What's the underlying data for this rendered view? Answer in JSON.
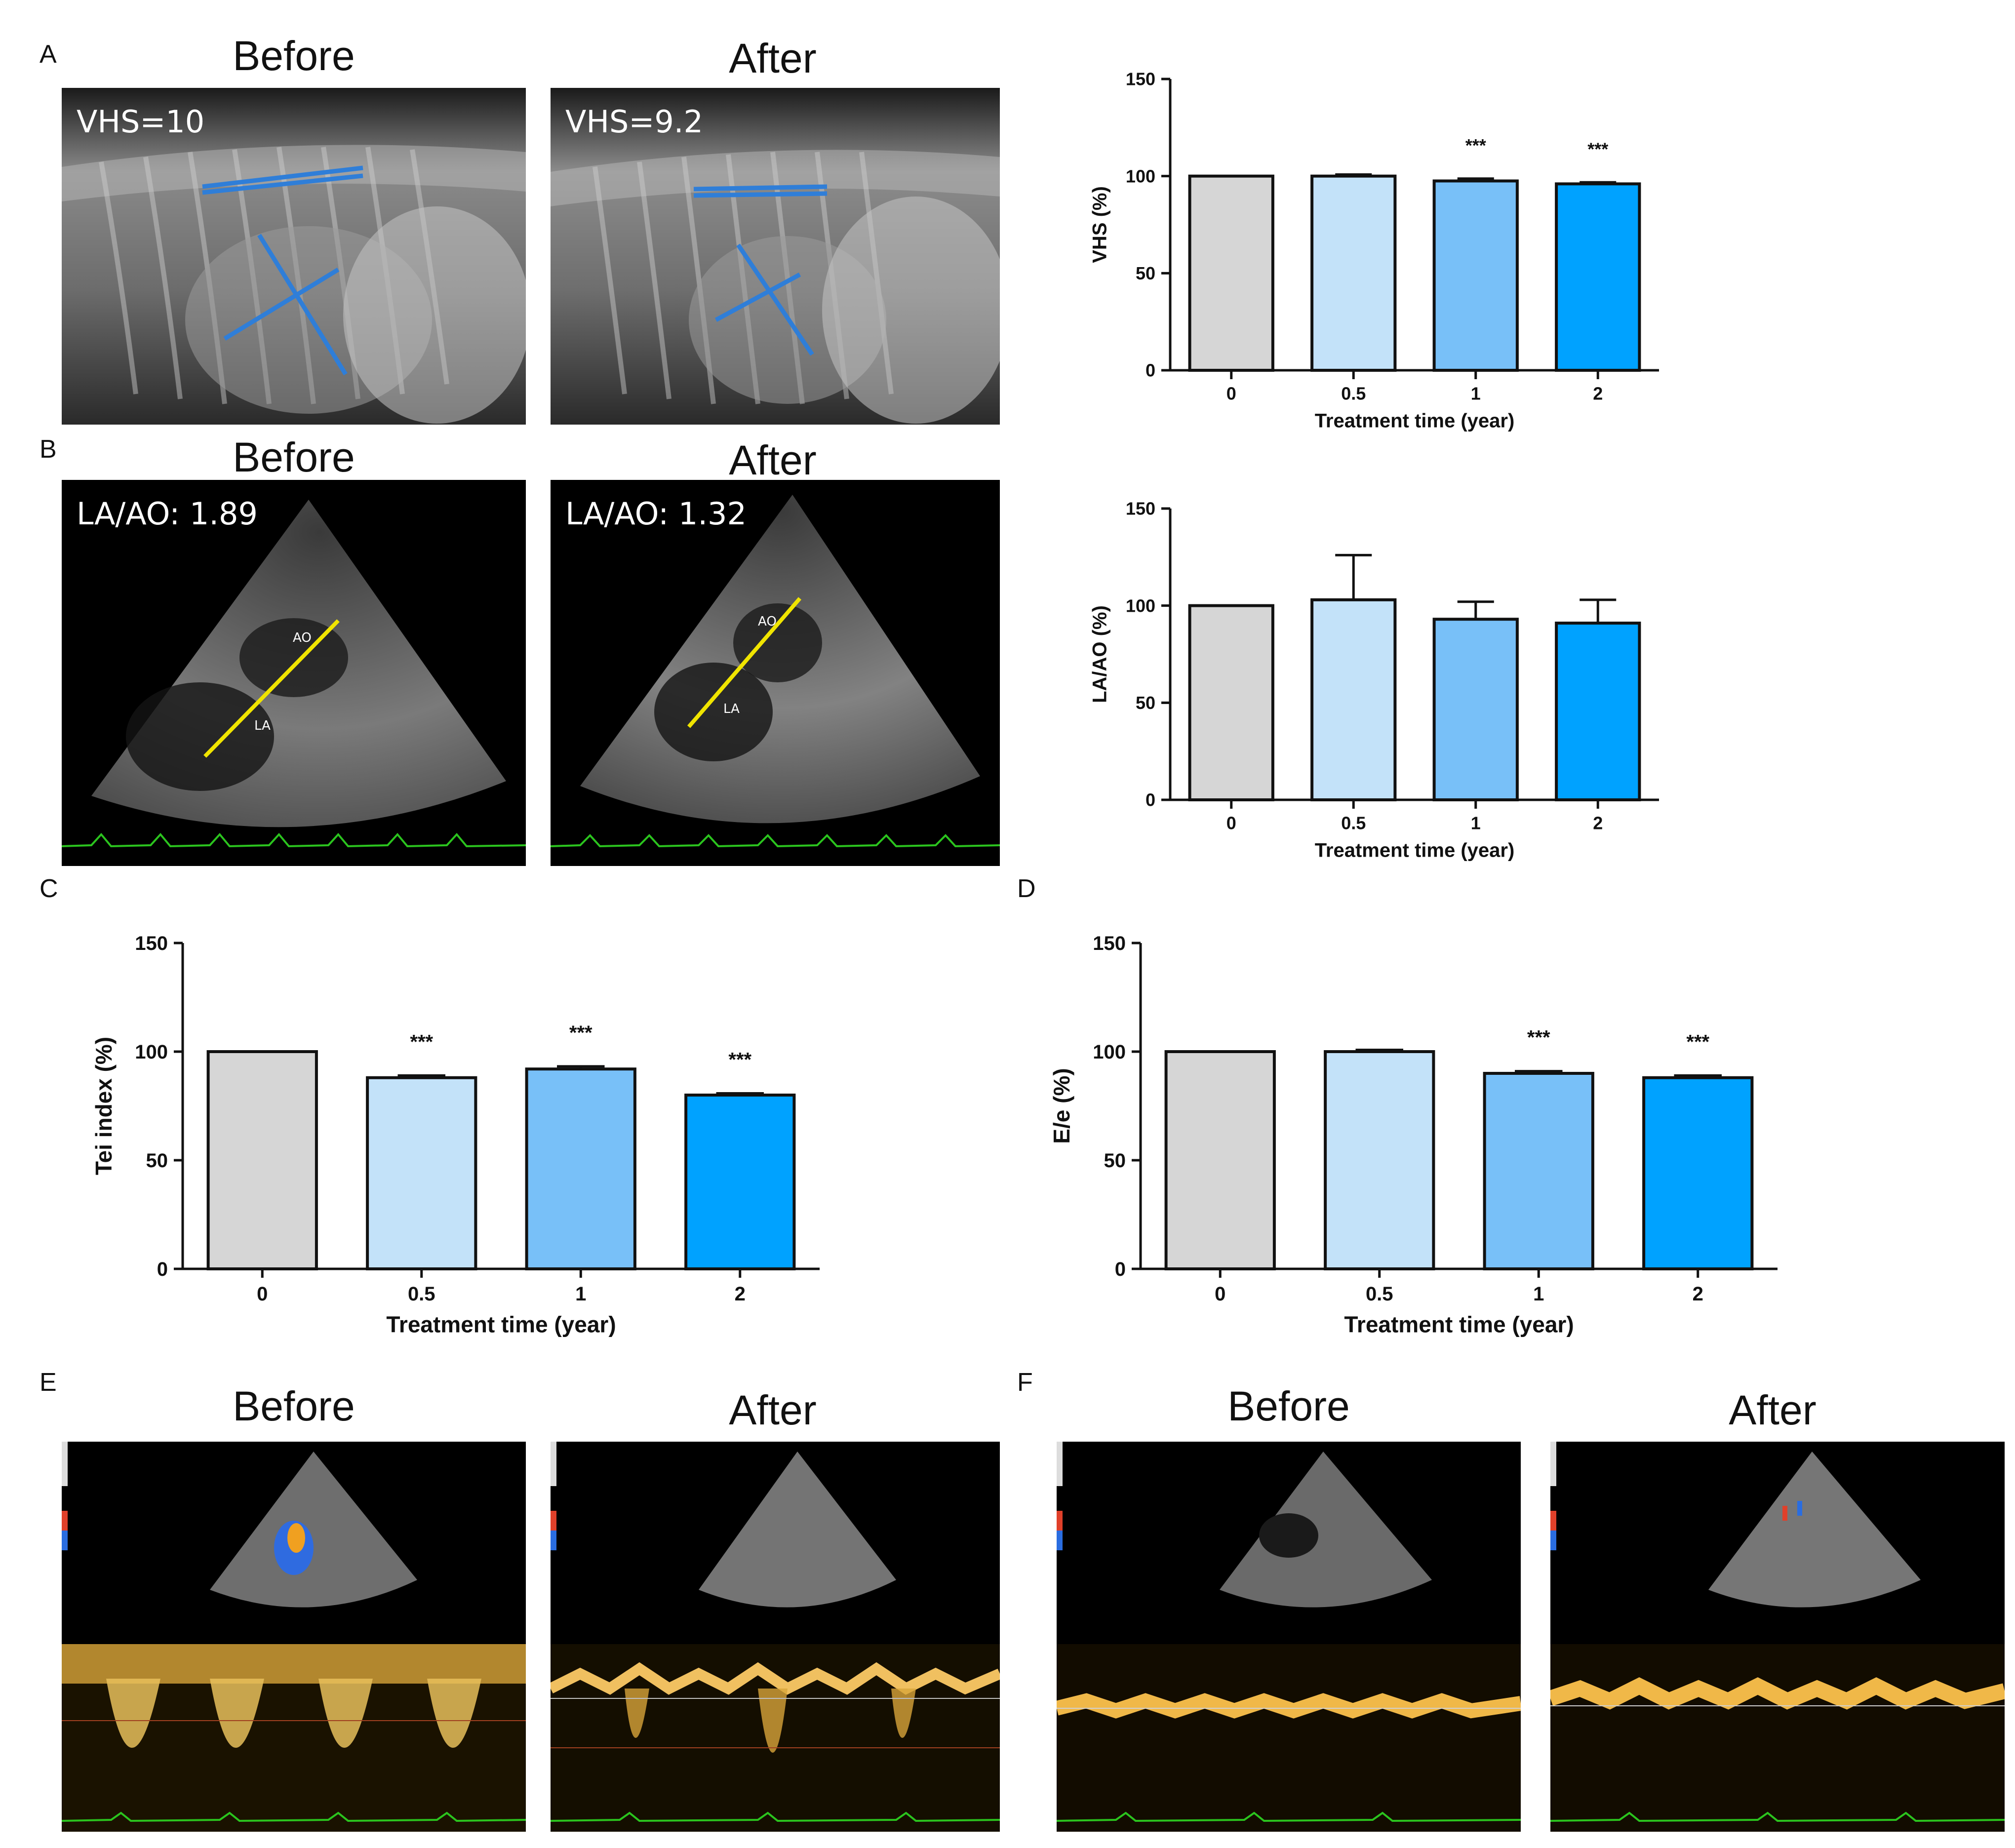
{
  "panel_letters": {
    "a": "A",
    "b": "B",
    "c": "C",
    "d": "D",
    "e": "E",
    "f": "F"
  },
  "images": {
    "xray_before": {
      "title": "Before",
      "label": "VHS=10"
    },
    "xray_after": {
      "title": "After",
      "label": "VHS=9.2"
    },
    "echo_before": {
      "title": "Before",
      "label": "LA/AO: 1.89",
      "marker_ao": "AO",
      "marker_la": "LA"
    },
    "echo_after": {
      "title": "After",
      "label": "LA/AO: 1.32",
      "marker_ao": "AO",
      "marker_la": "LA"
    },
    "doppler_e_before": {
      "title": "Before"
    },
    "doppler_e_after": {
      "title": "After"
    },
    "doppler_f_before": {
      "title": "Before"
    },
    "doppler_f_after": {
      "title": "After"
    }
  },
  "colors": {
    "c0": "#d6d6d6",
    "c05": "#c3e2f9",
    "c1": "#78c0f8",
    "c2": "#00a2ff"
  },
  "chart_data": [
    {
      "id": "vhs",
      "type": "bar",
      "categories": [
        "0",
        "0.5",
        "1",
        "2"
      ],
      "values": [
        100,
        100,
        97.5,
        96
      ],
      "errors": [
        0,
        0.8,
        1.2,
        0.8
      ],
      "significance": [
        "",
        "",
        "***",
        "***"
      ],
      "ylabel": "VHS (%)",
      "xlabel": "Treatment time (year)",
      "ylim": [
        0,
        150
      ],
      "yticks": [
        0,
        50,
        100,
        150
      ]
    },
    {
      "id": "laao",
      "type": "bar",
      "categories": [
        "0",
        "0.5",
        "1",
        "2"
      ],
      "values": [
        100,
        103,
        93,
        91
      ],
      "errors": [
        0,
        23,
        9,
        12
      ],
      "significance": [
        "",
        "",
        "",
        ""
      ],
      "ylabel": "LA/AO (%)",
      "xlabel": "Treatment time (year)",
      "ylim": [
        0,
        150
      ],
      "yticks": [
        0,
        50,
        100,
        150
      ]
    },
    {
      "id": "tei",
      "type": "bar",
      "categories": [
        "0",
        "0.5",
        "1",
        "2"
      ],
      "values": [
        100,
        88,
        92,
        80
      ],
      "errors": [
        0,
        1,
        1.2,
        0.8
      ],
      "significance": [
        "",
        "***",
        "***",
        "***"
      ],
      "ylabel": "Tei index (%)",
      "xlabel": "Treatment time (year)",
      "ylim": [
        0,
        150
      ],
      "yticks": [
        0,
        50,
        100,
        150
      ]
    },
    {
      "id": "ee",
      "type": "bar",
      "categories": [
        "0",
        "0.5",
        "1",
        "2"
      ],
      "values": [
        100,
        100,
        90,
        88
      ],
      "errors": [
        0,
        0.8,
        1,
        1
      ],
      "significance": [
        "",
        "",
        "***",
        "***"
      ],
      "ylabel": "E/e (%)",
      "xlabel": "Treatment time (year)",
      "ylim": [
        0,
        150
      ],
      "yticks": [
        0,
        50,
        100,
        150
      ]
    }
  ]
}
